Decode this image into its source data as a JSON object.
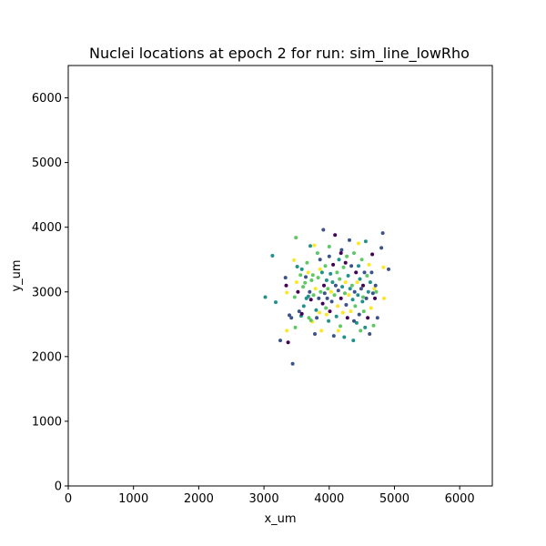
{
  "chart_data": {
    "type": "scatter",
    "title": "Nuclei locations at epoch 2 for run: sim_line_lowRho",
    "xlabel": "x_um",
    "ylabel": "y_um",
    "xlim": [
      0,
      6500
    ],
    "ylim": [
      0,
      6500
    ],
    "xticks": [
      "0",
      "1000",
      "2000",
      "3000",
      "4000",
      "5000",
      "6000"
    ],
    "yticks": [
      "0",
      "1000",
      "2000",
      "3000",
      "4000",
      "5000",
      "6000"
    ],
    "grid": false,
    "legend": "none",
    "colormap": "viridis",
    "colors": [
      "#440154",
      "#3b528b",
      "#21918c",
      "#5ec962",
      "#fde725"
    ],
    "points": [
      {
        "x": 3020,
        "y": 2920,
        "c": 2
      },
      {
        "x": 3130,
        "y": 3560,
        "c": 2
      },
      {
        "x": 3180,
        "y": 2840,
        "c": 2
      },
      {
        "x": 3250,
        "y": 2250,
        "c": 1
      },
      {
        "x": 3330,
        "y": 3220,
        "c": 1
      },
      {
        "x": 3340,
        "y": 3100,
        "c": 0
      },
      {
        "x": 3350,
        "y": 2400,
        "c": 4
      },
      {
        "x": 3370,
        "y": 2220,
        "c": 0
      },
      {
        "x": 3390,
        "y": 2640,
        "c": 1
      },
      {
        "x": 3420,
        "y": 2600,
        "c": 1
      },
      {
        "x": 3440,
        "y": 1890,
        "c": 1
      },
      {
        "x": 3460,
        "y": 3490,
        "c": 4
      },
      {
        "x": 3470,
        "y": 2920,
        "c": 3
      },
      {
        "x": 3480,
        "y": 2450,
        "c": 3
      },
      {
        "x": 3490,
        "y": 3840,
        "c": 3
      },
      {
        "x": 3510,
        "y": 3390,
        "c": 2
      },
      {
        "x": 3520,
        "y": 3000,
        "c": 0
      },
      {
        "x": 3540,
        "y": 2700,
        "c": 1
      },
      {
        "x": 3560,
        "y": 3260,
        "c": 3
      },
      {
        "x": 3570,
        "y": 2630,
        "c": 2
      },
      {
        "x": 3580,
        "y": 3350,
        "c": 2
      },
      {
        "x": 3600,
        "y": 3080,
        "c": 3
      },
      {
        "x": 3610,
        "y": 2780,
        "c": 2
      },
      {
        "x": 3630,
        "y": 3140,
        "c": 3
      },
      {
        "x": 3640,
        "y": 3230,
        "c": 1
      },
      {
        "x": 3650,
        "y": 2900,
        "c": 2
      },
      {
        "x": 3660,
        "y": 3450,
        "c": 3
      },
      {
        "x": 3680,
        "y": 3300,
        "c": 4
      },
      {
        "x": 3690,
        "y": 2600,
        "c": 3
      },
      {
        "x": 3700,
        "y": 3000,
        "c": 1
      },
      {
        "x": 3710,
        "y": 3710,
        "c": 2
      },
      {
        "x": 3720,
        "y": 2880,
        "c": 0
      },
      {
        "x": 3730,
        "y": 3180,
        "c": 3
      },
      {
        "x": 3740,
        "y": 2540,
        "c": 4
      },
      {
        "x": 3750,
        "y": 3260,
        "c": 3
      },
      {
        "x": 3760,
        "y": 2950,
        "c": 3
      },
      {
        "x": 3770,
        "y": 3720,
        "c": 4
      },
      {
        "x": 3780,
        "y": 2350,
        "c": 1
      },
      {
        "x": 3790,
        "y": 3050,
        "c": 4
      },
      {
        "x": 3800,
        "y": 2720,
        "c": 2
      },
      {
        "x": 3810,
        "y": 2600,
        "c": 1
      },
      {
        "x": 3820,
        "y": 3600,
        "c": 3
      },
      {
        "x": 3830,
        "y": 3220,
        "c": 3
      },
      {
        "x": 3840,
        "y": 2900,
        "c": 1
      },
      {
        "x": 3850,
        "y": 2680,
        "c": 4
      },
      {
        "x": 3860,
        "y": 3500,
        "c": 1
      },
      {
        "x": 3870,
        "y": 3000,
        "c": 3
      },
      {
        "x": 3880,
        "y": 2400,
        "c": 4
      },
      {
        "x": 3890,
        "y": 3300,
        "c": 2
      },
      {
        "x": 3900,
        "y": 2820,
        "c": 0
      },
      {
        "x": 3910,
        "y": 3960,
        "c": 1
      },
      {
        "x": 3920,
        "y": 3100,
        "c": 0
      },
      {
        "x": 3930,
        "y": 2980,
        "c": 1
      },
      {
        "x": 3940,
        "y": 3400,
        "c": 3
      },
      {
        "x": 3950,
        "y": 2750,
        "c": 3
      },
      {
        "x": 3960,
        "y": 3180,
        "c": 2
      },
      {
        "x": 3970,
        "y": 2900,
        "c": 1
      },
      {
        "x": 3980,
        "y": 3050,
        "c": 3
      },
      {
        "x": 3990,
        "y": 2550,
        "c": 2
      },
      {
        "x": 4000,
        "y": 3550,
        "c": 1
      },
      {
        "x": 4010,
        "y": 2700,
        "c": 0
      },
      {
        "x": 4020,
        "y": 3280,
        "c": 2
      },
      {
        "x": 4030,
        "y": 3000,
        "c": 4
      },
      {
        "x": 4040,
        "y": 2850,
        "c": 1
      },
      {
        "x": 4050,
        "y": 3150,
        "c": 2
      },
      {
        "x": 4060,
        "y": 3420,
        "c": 0
      },
      {
        "x": 4070,
        "y": 2320,
        "c": 1
      },
      {
        "x": 4080,
        "y": 2950,
        "c": 3
      },
      {
        "x": 4090,
        "y": 3880,
        "c": 0
      },
      {
        "x": 4100,
        "y": 3100,
        "c": 1
      },
      {
        "x": 4110,
        "y": 2620,
        "c": 2
      },
      {
        "x": 4120,
        "y": 3300,
        "c": 3
      },
      {
        "x": 4130,
        "y": 2780,
        "c": 4
      },
      {
        "x": 4140,
        "y": 3020,
        "c": 1
      },
      {
        "x": 4150,
        "y": 3500,
        "c": 2
      },
      {
        "x": 4160,
        "y": 3200,
        "c": 3
      },
      {
        "x": 4170,
        "y": 2470,
        "c": 3
      },
      {
        "x": 4180,
        "y": 2900,
        "c": 0
      },
      {
        "x": 4190,
        "y": 3650,
        "c": 1
      },
      {
        "x": 4200,
        "y": 3080,
        "c": 2
      },
      {
        "x": 4210,
        "y": 2680,
        "c": 4
      },
      {
        "x": 4220,
        "y": 3380,
        "c": 3
      },
      {
        "x": 4230,
        "y": 2300,
        "c": 2
      },
      {
        "x": 4240,
        "y": 2980,
        "c": 3
      },
      {
        "x": 4250,
        "y": 3150,
        "c": 4
      },
      {
        "x": 4260,
        "y": 2800,
        "c": 1
      },
      {
        "x": 4270,
        "y": 3550,
        "c": 3
      },
      {
        "x": 4280,
        "y": 2600,
        "c": 0
      },
      {
        "x": 4290,
        "y": 3250,
        "c": 2
      },
      {
        "x": 4300,
        "y": 2950,
        "c": 4
      },
      {
        "x": 4310,
        "y": 3800,
        "c": 1
      },
      {
        "x": 4320,
        "y": 3050,
        "c": 2
      },
      {
        "x": 4330,
        "y": 2700,
        "c": 4
      },
      {
        "x": 4340,
        "y": 3400,
        "c": 1
      },
      {
        "x": 4350,
        "y": 3100,
        "c": 3
      },
      {
        "x": 4360,
        "y": 2880,
        "c": 2
      },
      {
        "x": 4370,
        "y": 2250,
        "c": 2
      },
      {
        "x": 4380,
        "y": 3600,
        "c": 3
      },
      {
        "x": 4390,
        "y": 3000,
        "c": 1
      },
      {
        "x": 4400,
        "y": 2780,
        "c": 3
      },
      {
        "x": 4410,
        "y": 3300,
        "c": 0
      },
      {
        "x": 4420,
        "y": 2520,
        "c": 2
      },
      {
        "x": 4430,
        "y": 3150,
        "c": 4
      },
      {
        "x": 4440,
        "y": 2950,
        "c": 2
      },
      {
        "x": 4450,
        "y": 3750,
        "c": 4
      },
      {
        "x": 4460,
        "y": 2650,
        "c": 1
      },
      {
        "x": 4470,
        "y": 3200,
        "c": 2
      },
      {
        "x": 4480,
        "y": 2400,
        "c": 3
      },
      {
        "x": 4490,
        "y": 3050,
        "c": 1
      },
      {
        "x": 4500,
        "y": 3500,
        "c": 3
      },
      {
        "x": 4510,
        "y": 2850,
        "c": 2
      },
      {
        "x": 4520,
        "y": 3100,
        "c": 0
      },
      {
        "x": 4530,
        "y": 2700,
        "c": 3
      },
      {
        "x": 4540,
        "y": 3300,
        "c": 1
      },
      {
        "x": 4550,
        "y": 2450,
        "c": 2
      },
      {
        "x": 4560,
        "y": 3780,
        "c": 2
      },
      {
        "x": 4570,
        "y": 2900,
        "c": 1
      },
      {
        "x": 4580,
        "y": 3250,
        "c": 3
      },
      {
        "x": 4590,
        "y": 2600,
        "c": 0
      },
      {
        "x": 4600,
        "y": 3000,
        "c": 2
      },
      {
        "x": 4610,
        "y": 3420,
        "c": 4
      },
      {
        "x": 4620,
        "y": 2350,
        "c": 1
      },
      {
        "x": 4630,
        "y": 3150,
        "c": 2
      },
      {
        "x": 4640,
        "y": 2750,
        "c": 4
      },
      {
        "x": 4650,
        "y": 3300,
        "c": 1
      },
      {
        "x": 4660,
        "y": 3580,
        "c": 0
      },
      {
        "x": 4670,
        "y": 2980,
        "c": 1
      },
      {
        "x": 4680,
        "y": 2480,
        "c": 3
      },
      {
        "x": 4690,
        "y": 3050,
        "c": 4
      },
      {
        "x": 4700,
        "y": 2900,
        "c": 0
      },
      {
        "x": 4710,
        "y": 3100,
        "c": 1
      },
      {
        "x": 4720,
        "y": 3000,
        "c": 3
      },
      {
        "x": 4740,
        "y": 2600,
        "c": 1
      },
      {
        "x": 4800,
        "y": 3680,
        "c": 1
      },
      {
        "x": 4820,
        "y": 3910,
        "c": 1
      },
      {
        "x": 4830,
        "y": 3380,
        "c": 4
      },
      {
        "x": 4840,
        "y": 2900,
        "c": 4
      },
      {
        "x": 4910,
        "y": 3350,
        "c": 1
      },
      {
        "x": 3350,
        "y": 2990,
        "c": 4
      },
      {
        "x": 3580,
        "y": 2660,
        "c": 0
      },
      {
        "x": 3720,
        "y": 2560,
        "c": 3
      },
      {
        "x": 3860,
        "y": 3350,
        "c": 4
      },
      {
        "x": 4000,
        "y": 3700,
        "c": 3
      },
      {
        "x": 4140,
        "y": 2400,
        "c": 4
      },
      {
        "x": 4250,
        "y": 3450,
        "c": 0
      },
      {
        "x": 4380,
        "y": 2550,
        "c": 1
      },
      {
        "x": 4520,
        "y": 2920,
        "c": 3
      },
      {
        "x": 3680,
        "y": 2930,
        "c": 2
      },
      {
        "x": 3960,
        "y": 2650,
        "c": 4
      },
      {
        "x": 4180,
        "y": 3600,
        "c": 0
      },
      {
        "x": 4450,
        "y": 3400,
        "c": 2
      },
      {
        "x": 3500,
        "y": 3150,
        "c": 4
      }
    ]
  }
}
